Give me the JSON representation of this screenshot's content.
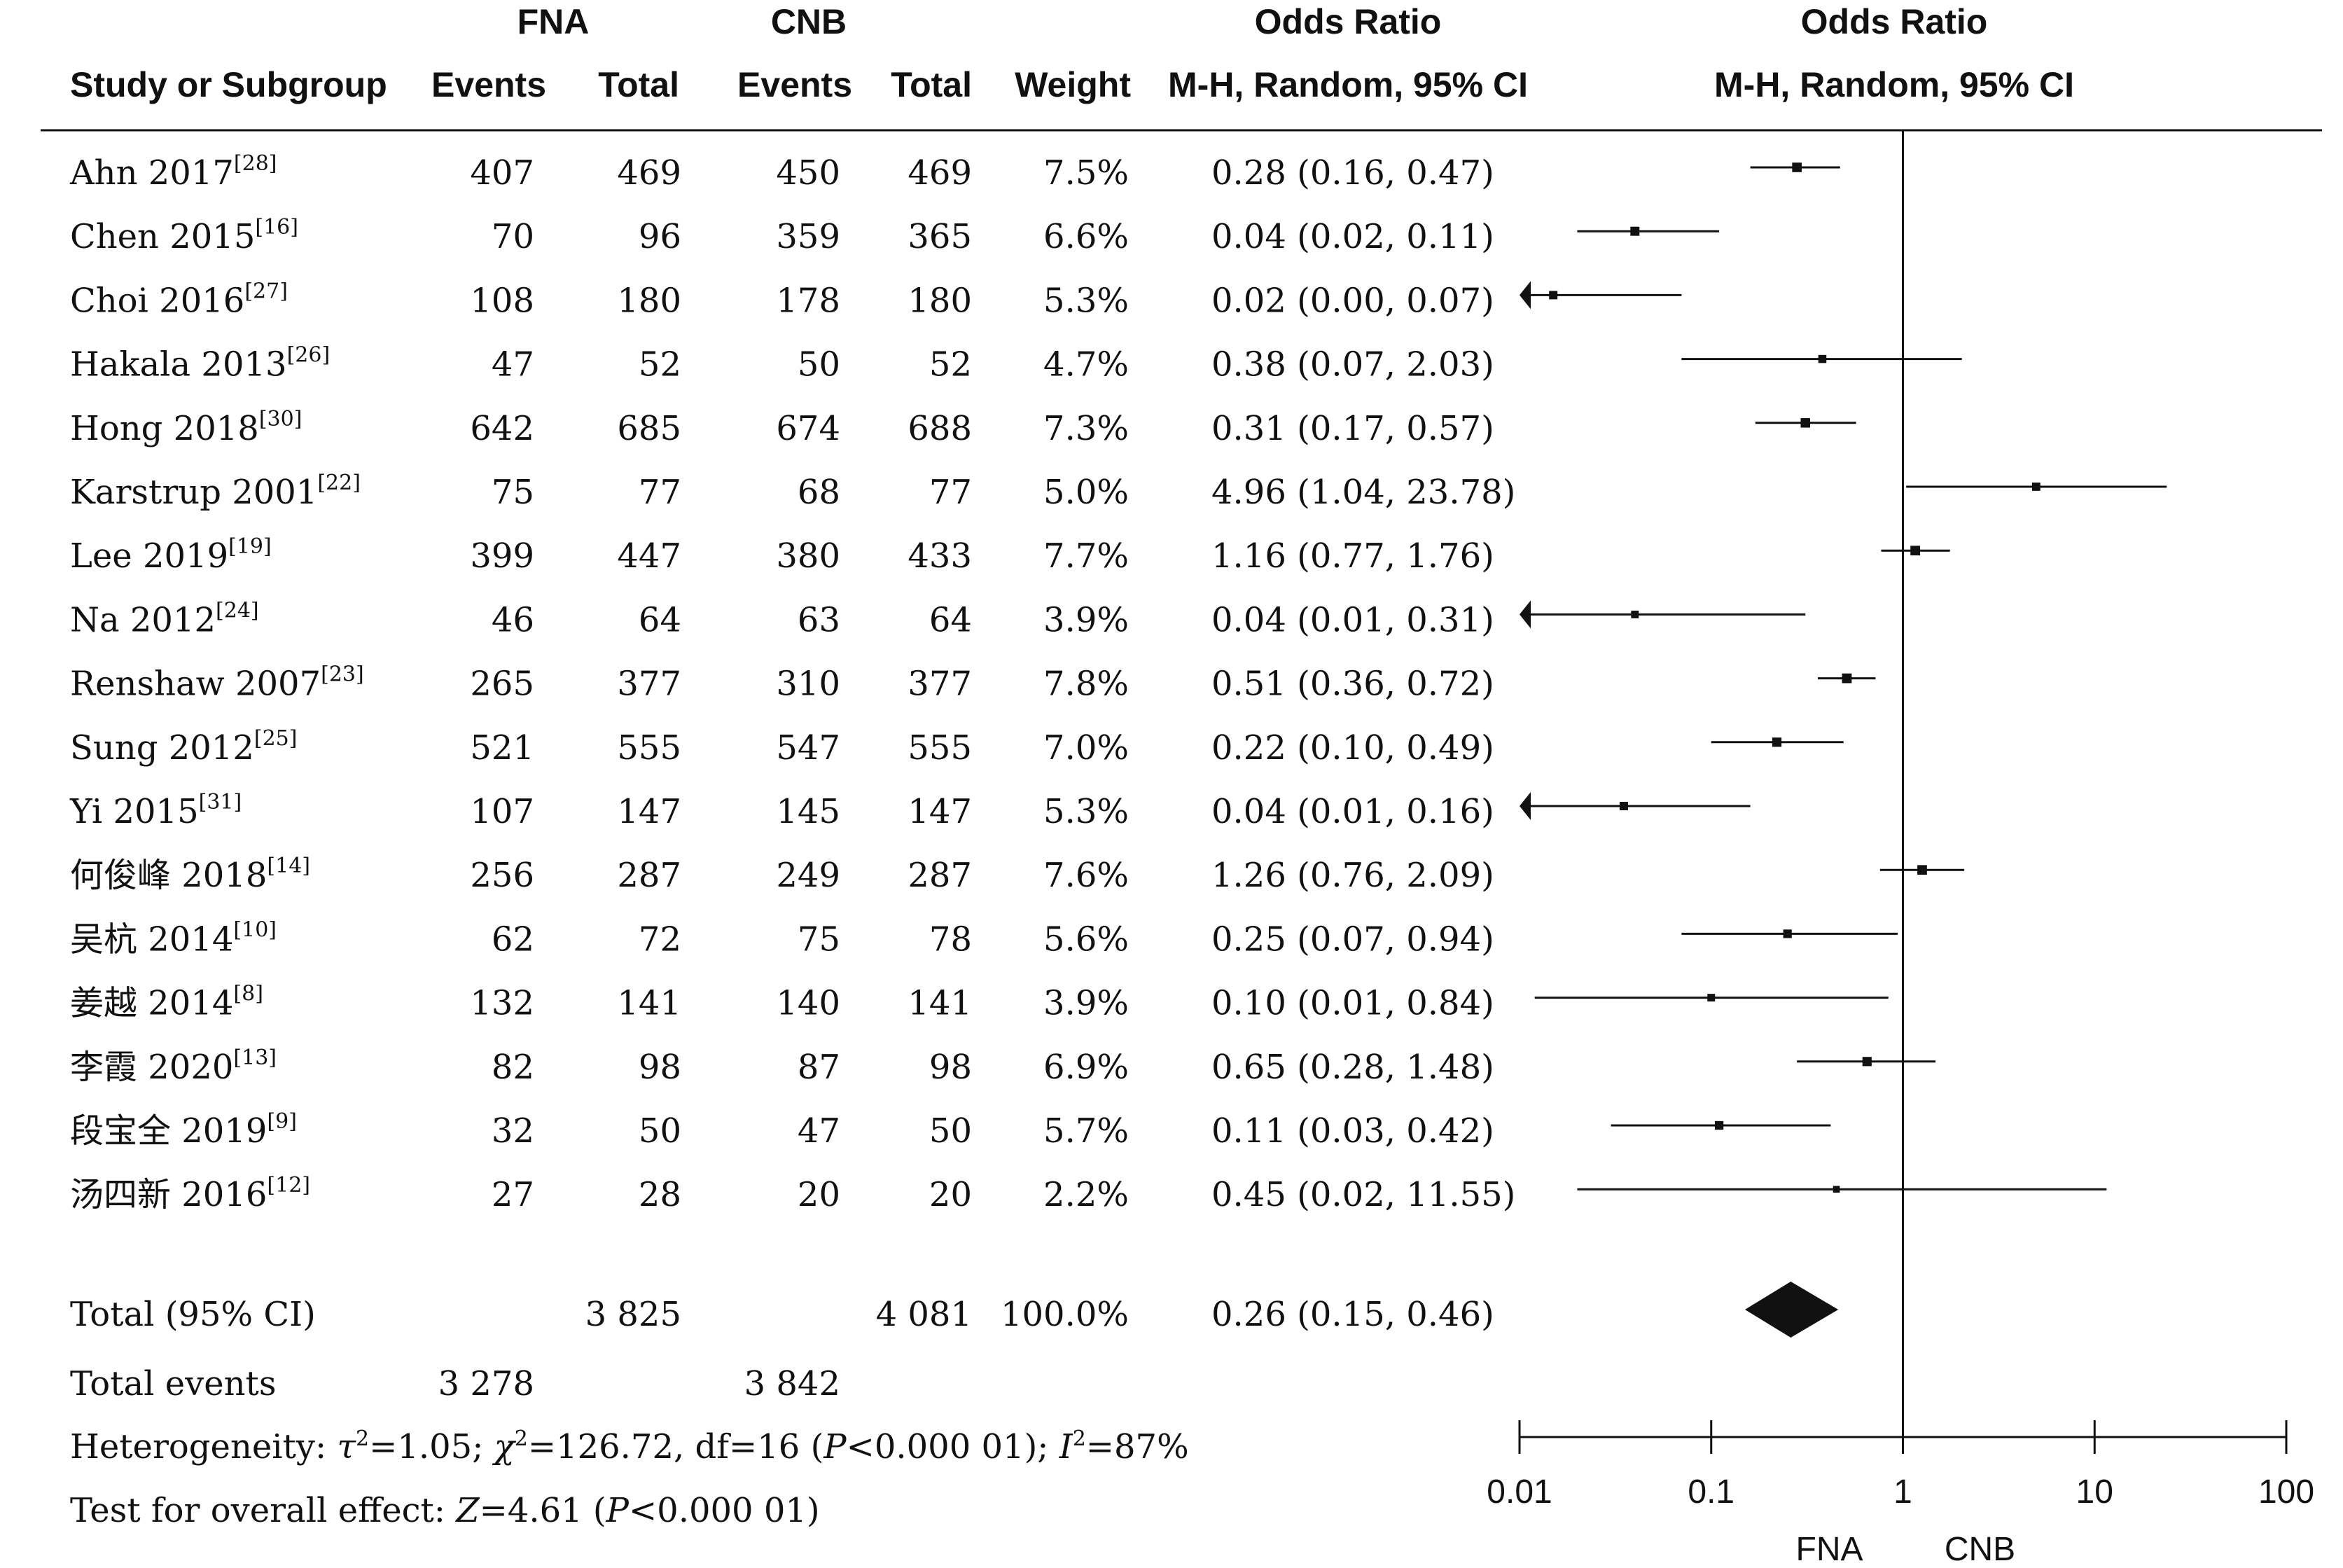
{
  "header": {
    "group1": "FNA",
    "group2": "CNB",
    "col_study": "Study or Subgroup",
    "col_events1": "Events",
    "col_total1": "Total",
    "col_events2": "Events",
    "col_total2": "Total",
    "col_weight": "Weight",
    "col_or_title": "Odds Ratio",
    "col_or_method": "M-H, Random, 95% CI",
    "plot_title": "Odds Ratio",
    "plot_method": "M-H, Random, 95% CI"
  },
  "chart_data": {
    "type": "forest",
    "scale": "log",
    "xlim": [
      0.01,
      100
    ],
    "tick_labels": [
      "0.01",
      "0.1",
      "1",
      "10",
      "100"
    ],
    "tick_values": [
      0.01,
      0.1,
      1,
      10,
      100
    ],
    "favours_left": "FNA",
    "favours_right": "CNB",
    "studies": [
      {
        "name": "Ahn 2017",
        "ref": "[28]",
        "e1": "407",
        "t1": "469",
        "e2": "450",
        "t2": "469",
        "weight": "7.5%",
        "ci_text": "0.28 (0.16, 0.47)",
        "or": 0.28,
        "lo": 0.16,
        "hi": 0.47
      },
      {
        "name": "Chen 2015",
        "ref": "[16]",
        "e1": "70",
        "t1": "96",
        "e2": "359",
        "t2": "365",
        "weight": "6.6%",
        "ci_text": "0.04 (0.02, 0.11)",
        "or": 0.04,
        "lo": 0.02,
        "hi": 0.11
      },
      {
        "name": "Choi 2016",
        "ref": "[27]",
        "e1": "108",
        "t1": "180",
        "e2": "178",
        "t2": "180",
        "weight": "5.3%",
        "ci_text": "0.02 (0.00, 0.07)",
        "or": 0.015,
        "lo": 0.001,
        "hi": 0.07
      },
      {
        "name": "Hakala 2013",
        "ref": "[26]",
        "e1": "47",
        "t1": "52",
        "e2": "50",
        "t2": "52",
        "weight": "4.7%",
        "ci_text": "0.38 (0.07, 2.03)",
        "or": 0.38,
        "lo": 0.07,
        "hi": 2.03
      },
      {
        "name": "Hong 2018",
        "ref": "[30]",
        "e1": "642",
        "t1": "685",
        "e2": "674",
        "t2": "688",
        "weight": "7.3%",
        "ci_text": "0.31 (0.17, 0.57)",
        "or": 0.31,
        "lo": 0.17,
        "hi": 0.57
      },
      {
        "name": "Karstrup 2001",
        "ref": "[22]",
        "e1": "75",
        "t1": "77",
        "e2": "68",
        "t2": "77",
        "weight": "5.0%",
        "ci_text": "4.96 (1.04, 23.78)",
        "or": 4.96,
        "lo": 1.04,
        "hi": 23.78
      },
      {
        "name": "Lee 2019",
        "ref": "[19]",
        "e1": "399",
        "t1": "447",
        "e2": "380",
        "t2": "433",
        "weight": "7.7%",
        "ci_text": "1.16 (0.77, 1.76)",
        "or": 1.16,
        "lo": 0.77,
        "hi": 1.76
      },
      {
        "name": "Na 2012",
        "ref": "[24]",
        "e1": "46",
        "t1": "64",
        "e2": "63",
        "t2": "64",
        "weight": "3.9%",
        "ci_text": "0.04 (0.01, 0.31)",
        "or": 0.04,
        "lo": 0.005,
        "hi": 0.31
      },
      {
        "name": "Renshaw 2007",
        "ref": "[23]",
        "e1": "265",
        "t1": "377",
        "e2": "310",
        "t2": "377",
        "weight": "7.8%",
        "ci_text": "0.51 (0.36, 0.72)",
        "or": 0.51,
        "lo": 0.36,
        "hi": 0.72
      },
      {
        "name": "Sung 2012",
        "ref": "[25]",
        "e1": "521",
        "t1": "555",
        "e2": "547",
        "t2": "555",
        "weight": "7.0%",
        "ci_text": "0.22 (0.10, 0.49)",
        "or": 0.22,
        "lo": 0.1,
        "hi": 0.49
      },
      {
        "name": "Yi 2015",
        "ref": "[31]",
        "e1": "107",
        "t1": "147",
        "e2": "145",
        "t2": "147",
        "weight": "5.3%",
        "ci_text": "0.04 (0.01, 0.16)",
        "or": 0.035,
        "lo": 0.005,
        "hi": 0.16
      },
      {
        "name": "何俊峰 2018",
        "ref": "[14]",
        "e1": "256",
        "t1": "287",
        "e2": "249",
        "t2": "287",
        "weight": "7.6%",
        "ci_text": "1.26 (0.76, 2.09)",
        "or": 1.26,
        "lo": 0.76,
        "hi": 2.09
      },
      {
        "name": "吴杭 2014",
        "ref": "[10]",
        "e1": "62",
        "t1": "72",
        "e2": "75",
        "t2": "78",
        "weight": "5.6%",
        "ci_text": "0.25 (0.07, 0.94)",
        "or": 0.25,
        "lo": 0.07,
        "hi": 0.94
      },
      {
        "name": "姜越 2014",
        "ref": "[8]",
        "e1": "132",
        "t1": "141",
        "e2": "140",
        "t2": "141",
        "weight": "3.9%",
        "ci_text": "0.10 (0.01, 0.84)",
        "or": 0.1,
        "lo": 0.012,
        "hi": 0.84
      },
      {
        "name": "李霞 2020",
        "ref": "[13]",
        "e1": "82",
        "t1": "98",
        "e2": "87",
        "t2": "98",
        "weight": "6.9%",
        "ci_text": "0.65 (0.28, 1.48)",
        "or": 0.65,
        "lo": 0.28,
        "hi": 1.48
      },
      {
        "name": "段宝全 2019",
        "ref": "[9]",
        "e1": "32",
        "t1": "50",
        "e2": "47",
        "t2": "50",
        "weight": "5.7%",
        "ci_text": "0.11 (0.03, 0.42)",
        "or": 0.11,
        "lo": 0.03,
        "hi": 0.42
      },
      {
        "name": "汤四新 2016",
        "ref": "[12]",
        "e1": "27",
        "t1": "28",
        "e2": "20",
        "t2": "20",
        "weight": "2.2%",
        "ci_text": "0.45 (0.02, 11.55)",
        "or": 0.45,
        "lo": 0.02,
        "hi": 11.55
      }
    ],
    "total": {
      "label": "Total (95% CI)",
      "t1": "3 825",
      "t2": "4 081",
      "weight": "100.0%",
      "ci_text": "0.26 (0.15, 0.46)",
      "or": 0.26,
      "lo": 0.15,
      "hi": 0.46
    },
    "events": {
      "label": "Total events",
      "e1": "3 278",
      "e2": "3 842"
    }
  },
  "footer": {
    "het_label": "Heterogeneity: ",
    "het_tau_sym": "τ",
    "het_tau_sup": "2",
    "het_tau_val": "=1.05; ",
    "het_chi_sym": "χ",
    "het_chi_sup": "2",
    "het_chi_val": "=126.72, df=16 (",
    "het_p_sym": "P",
    "het_p_val": "<0.000 01); ",
    "het_i_sym": "I",
    "het_i_sup": "2",
    "het_i_val": "=87%",
    "test_label": "Test for overall effect: ",
    "test_z_sym": "Z",
    "test_z_val": "=4.61 (",
    "test_p_sym": "P",
    "test_p_val": "<0.000 01)"
  }
}
